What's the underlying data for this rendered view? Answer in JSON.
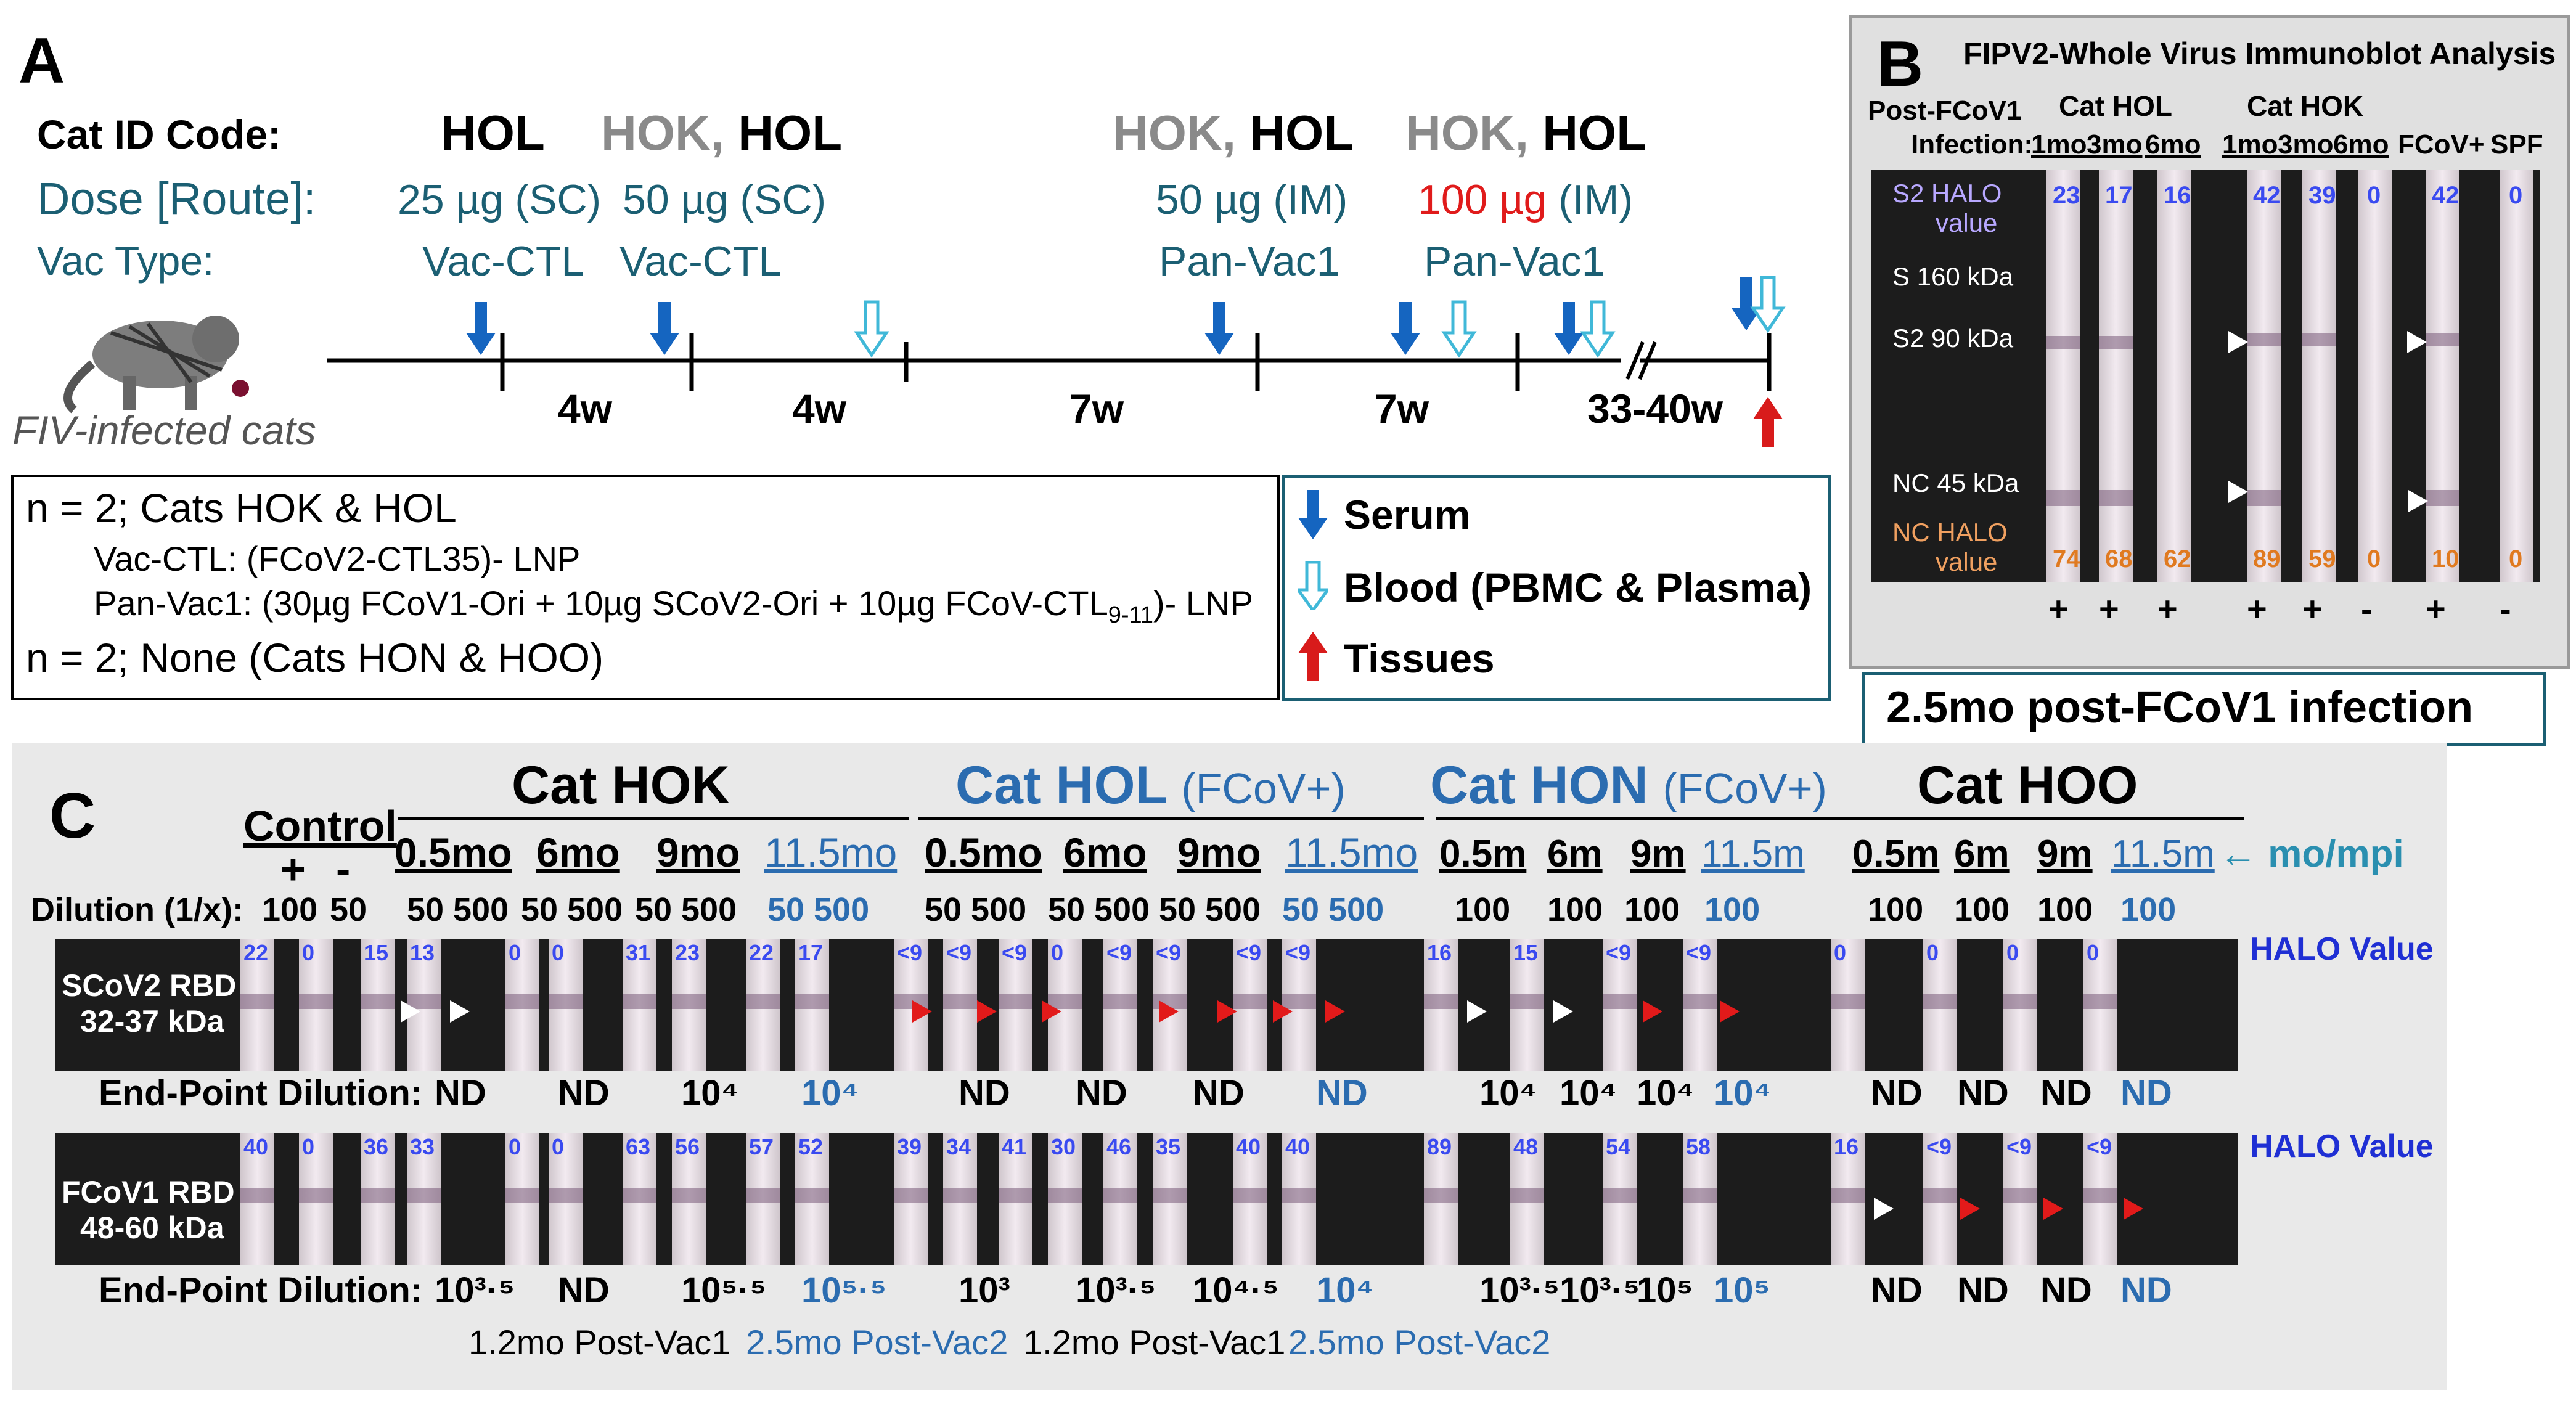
{
  "panelA": {
    "letter": "A",
    "cat_id_label": "Cat ID Code:",
    "dose_label": "Dose [Route]:",
    "vac_label": "Vac Type:",
    "cat_groups": [
      {
        "grey": "",
        "black": "HOL"
      },
      {
        "grey": "HOK,",
        "black": "HOL"
      },
      {
        "grey": "HOK,",
        "black": "HOL"
      },
      {
        "grey": "HOK,",
        "black": "HOL"
      }
    ],
    "doses": [
      {
        "text": "25 µg (SC)",
        "color": "#1b5f73"
      },
      {
        "text": "50 µg (SC)",
        "color": "#1b5f73"
      },
      {
        "text": "50 µg (IM)",
        "color": "#1b5f73"
      },
      {
        "text": "100 µg",
        "color": "#e01b1b",
        "suffix": "(IM)"
      }
    ],
    "vac_types": [
      "Vac-CTL",
      "Vac-CTL",
      "Pan-Vac1",
      "Pan-Vac1"
    ],
    "fiv_label": "FIV-infected  cats",
    "intervals": [
      "4w",
      "4w",
      "7w",
      "7w",
      "33-40w"
    ],
    "description": {
      "line1": "n = 2; Cats HOK & HOL",
      "line2": "Vac-CTL:  (FCoV2-CTL35)- LNP",
      "line3": "Pan-Vac1: (30µg FCoV1-Ori + 10µg SCoV2-Ori + 10µg FCoV-CTL",
      "line3_sub": "9-11",
      "line3_end": ")- LNP",
      "line4": "n = 2; None  (Cats HON & HOO)"
    },
    "legend": [
      {
        "label": "Serum",
        "icon": "blue-down-arrow",
        "color": "#1565c0"
      },
      {
        "label": "Blood (PBMC & Plasma)",
        "icon": "light-blue-down-arrow",
        "color": "#8fd3e8"
      },
      {
        "label": "Tissues",
        "icon": "red-up-arrow",
        "color": "#d81b1b"
      }
    ]
  },
  "panelB": {
    "letter": "B",
    "title": "FIPV2-Whole  Virus  Immunoblot  Analysis",
    "post_label_1": "Post-FCoV1",
    "post_label_2": "Infection:",
    "cat_hol": "Cat HOL",
    "cat_hok": "Cat HOK",
    "timepoints": [
      "1mo",
      "3mo",
      "6mo",
      "1mo",
      "3mo",
      "6mo"
    ],
    "controls": [
      "FCoV+",
      "SPF"
    ],
    "s2_halo_label_1": "S2 HALO",
    "s2_halo_label_2": "value",
    "s_label": "S 160 kDa",
    "s2_label": "S2 90 kDa",
    "nc_label": "NC 45 kDa",
    "nc_halo_label_1": "NC HALO",
    "nc_halo_label_2": "value",
    "s2_halo_values": [
      "23",
      "17",
      "16",
      "42",
      "39",
      "0",
      "42",
      "0"
    ],
    "nc_halo_values": [
      "74",
      "68",
      "62",
      "89",
      "59",
      "0",
      "10",
      "0"
    ],
    "signs": [
      "+",
      "+",
      "+",
      "+",
      "+",
      "-",
      "+",
      "-"
    ],
    "footer": "2.5mo post-FCoV1 infection"
  },
  "panelC": {
    "letter": "C",
    "groups": [
      {
        "name": "Cat HOK",
        "suffix": "",
        "color": "#000000"
      },
      {
        "name": "Cat HOL",
        "suffix": "(FCoV+)",
        "color": "#2b6cb0"
      },
      {
        "name": "Cat HON",
        "suffix": "(FCoV+)",
        "color": "#2b6cb0"
      },
      {
        "name": "Cat HOO",
        "suffix": "",
        "color": "#000000"
      }
    ],
    "control_label": "Control",
    "control_signs": [
      "+",
      "-"
    ],
    "dilution_label": "Dilution (1/x):",
    "control_dilutions": [
      "100",
      "50"
    ],
    "hok_times": [
      "0.5mo",
      "6mo",
      "9mo",
      "11.5mo"
    ],
    "hol_times": [
      "0.5mo",
      "6mo",
      "9mo",
      "11.5mo"
    ],
    "hon_times": [
      "0.5m",
      "6m",
      "9m",
      "11.5m"
    ],
    "hoo_times": [
      "0.5m",
      "6m",
      "9m",
      "11.5m"
    ],
    "mo_mpi": "← mo/mpi",
    "pair_dilution": [
      "50",
      "500"
    ],
    "single_dilution": "100",
    "row1_label_1": "SCoV2 RBD",
    "row1_label_2": "32-37 kDa",
    "row2_label_1": "FCoV1 RBD",
    "row2_label_2": "48-60 kDa",
    "halo_value": "HALO Value",
    "row1_halo": [
      "22",
      "0",
      "15",
      "13",
      "0",
      "0",
      "31",
      "23",
      "22",
      "17",
      "<9",
      "<9",
      "<9",
      "0",
      "<9",
      "<9",
      "<9",
      "<9",
      "16",
      "15",
      "<9",
      "<9",
      "0",
      "0",
      "0",
      "0"
    ],
    "row2_halo": [
      "40",
      "0",
      "36",
      "33",
      "0",
      "0",
      "63",
      "56",
      "57",
      "52",
      "39",
      "34",
      "41",
      "30",
      "46",
      "35",
      "40",
      "40",
      "89",
      "48",
      "54",
      "58",
      "16",
      "<9",
      "<9",
      "<9"
    ],
    "end_point_label": "End-Point Dilution:",
    "row1_endpoints": [
      "ND",
      "ND",
      "10⁴",
      "10⁴",
      "ND",
      "ND",
      "ND",
      "ND",
      "10⁴",
      "10⁴",
      "10⁴",
      "10⁴",
      "ND",
      "ND",
      "ND",
      "ND"
    ],
    "row2_endpoints": [
      "10³·⁵",
      "ND",
      "10⁵·⁵",
      "10⁵·⁵",
      "10³",
      "10³·⁵",
      "10⁴·⁵",
      "10⁴",
      "10³·⁵",
      "10³·⁵",
      "10⁵",
      "10⁵",
      "ND",
      "ND",
      "ND",
      "ND"
    ],
    "post_vac_notes": [
      "1.2mo  Post-Vac1",
      "2.5mo Post-Vac2",
      "1.2mo  Post-Vac1",
      "2.5mo Post-Vac2"
    ]
  }
}
